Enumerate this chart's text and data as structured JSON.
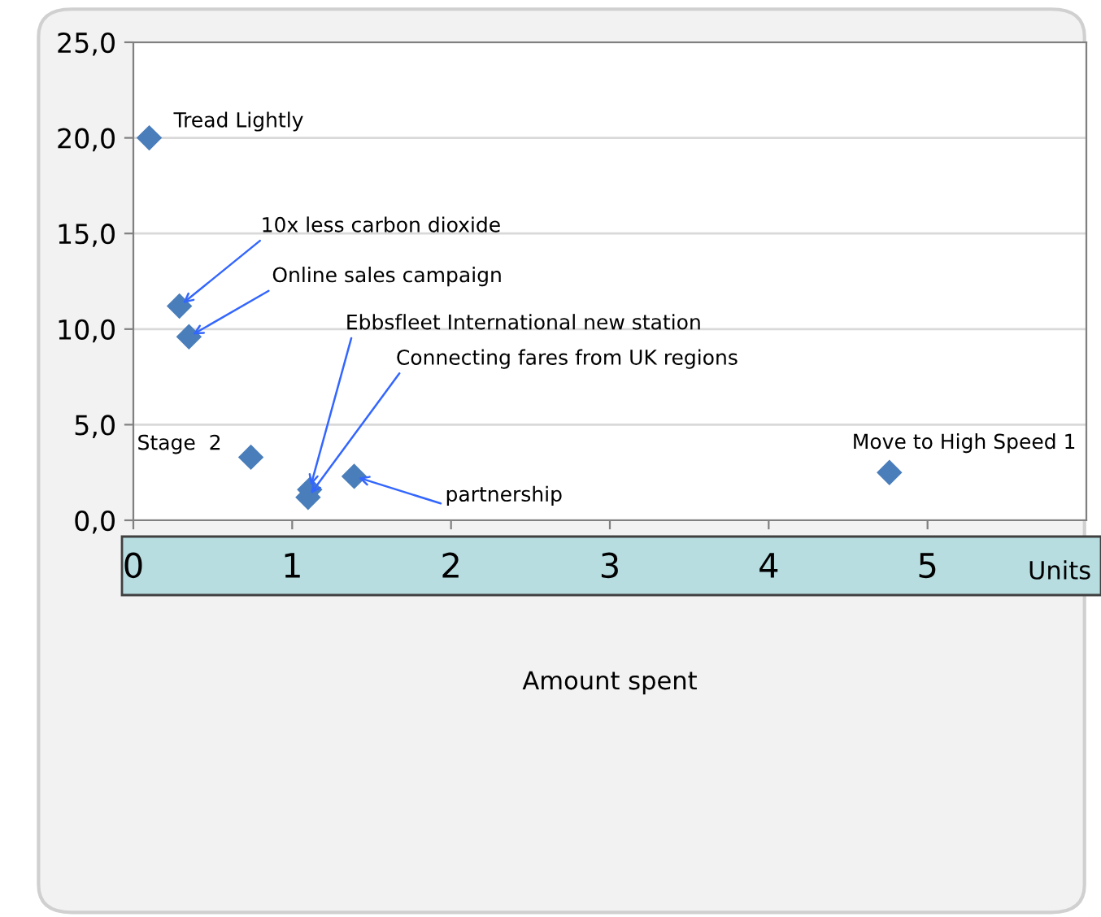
{
  "chart_data": {
    "type": "scatter",
    "xlabel": "Amount spent",
    "x": [
      0.1,
      0.29,
      0.35,
      1.11,
      1.1,
      0.74,
      1.39,
      4.76
    ],
    "series": [
      {
        "color": "#4a7ebb",
        "values": [
          20.0,
          11.2,
          9.6,
          1.6,
          1.2,
          3.3,
          2.3,
          2.5
        ]
      }
    ],
    "marker": "diamond",
    "xlim": [
      0,
      6
    ],
    "xticks": [
      0,
      1,
      2,
      3,
      4,
      5
    ],
    "ylim": [
      0,
      25
    ],
    "yticks": [
      {
        "value": 0,
        "label": "0,0"
      },
      {
        "value": 5,
        "label": "5,0"
      },
      {
        "value": 10,
        "label": "10,0"
      },
      {
        "value": 15,
        "label": "15,0"
      },
      {
        "value": 20,
        "label": "20,0"
      },
      {
        "value": 25,
        "label": "25,0"
      }
    ],
    "grid": "y",
    "annotations": [
      {
        "text": "Tread Lightly",
        "x": 0.1,
        "y": 20.0
      },
      {
        "text": "10x less carbon dioxide",
        "x": 0.29,
        "y": 11.2
      },
      {
        "text": "Online sales campaign",
        "x": 0.35,
        "y": 9.6
      },
      {
        "text": "Ebbsfleet International new station",
        "x": 1.11,
        "y": 1.6
      },
      {
        "text": "Connecting fares from UK regions",
        "x": 1.1,
        "y": 1.2
      },
      {
        "text": "Stage  2",
        "x": 0.74,
        "y": 3.3
      },
      {
        "text": "partnership",
        "x": 1.39,
        "y": 2.3
      },
      {
        "text": "Move to High Speed 1",
        "x": 4.76,
        "y": 2.5
      },
      "Units"
    ]
  }
}
